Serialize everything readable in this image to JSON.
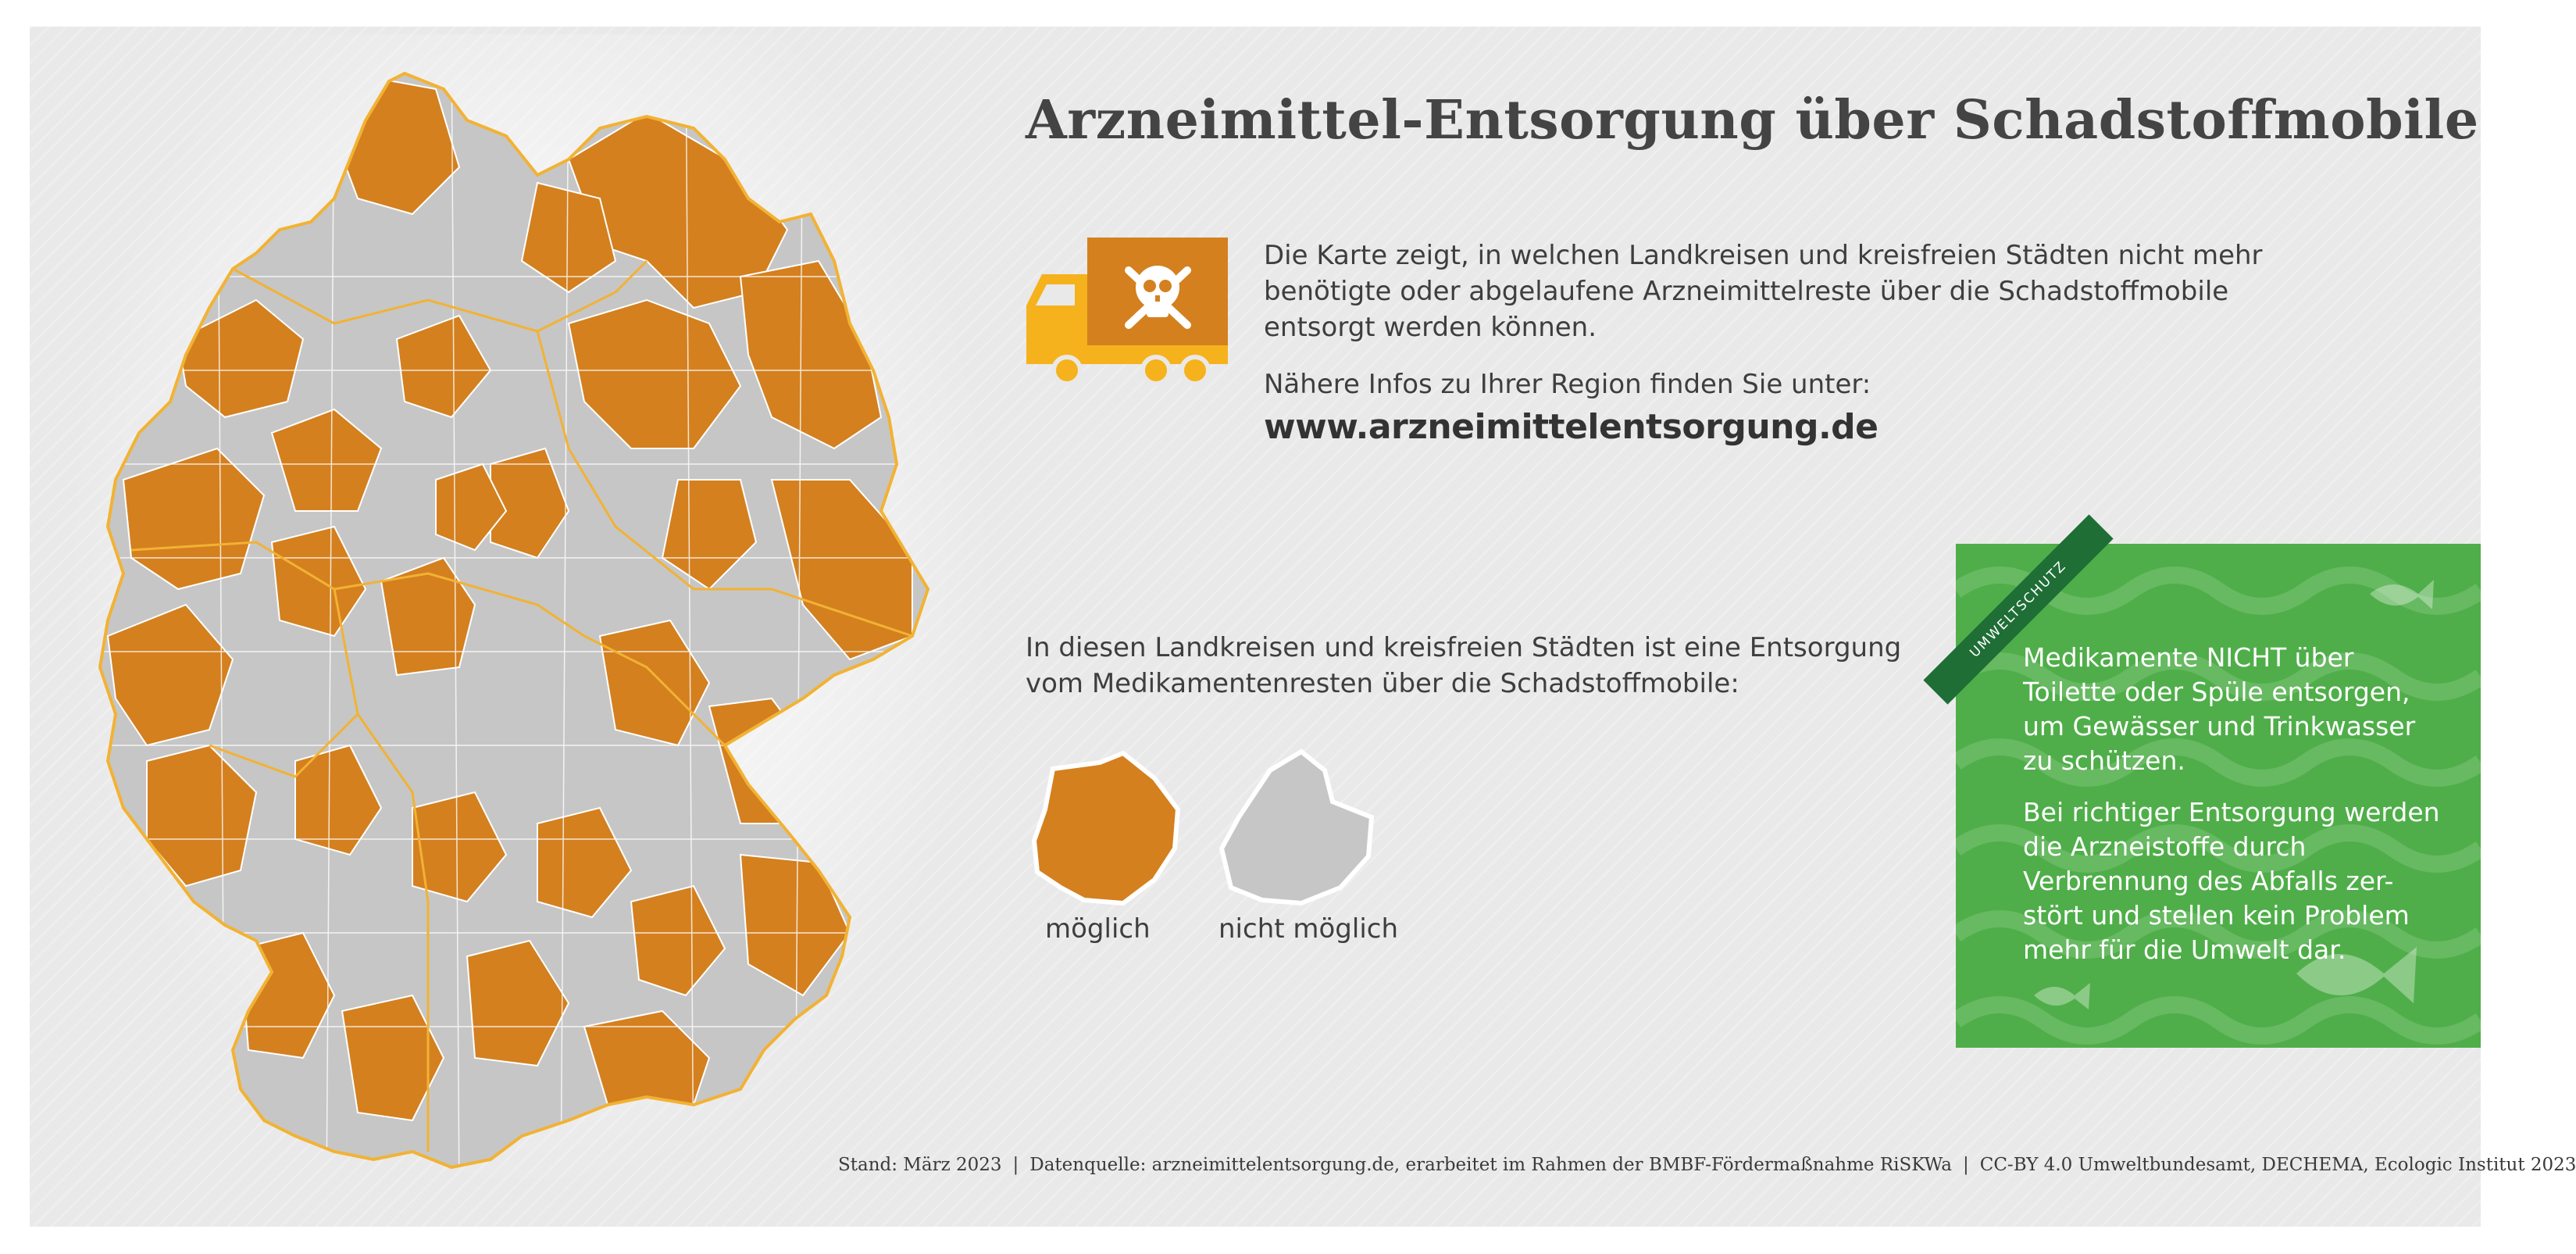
{
  "title": "Arzneimittel-Entsorgung über Schadstoffmobile",
  "intro_text": "Die Karte zeigt, in welchen Landkreisen und kreisfreien Städten nicht mehr benötigte oder abgelaufene Arzneimittelreste über die Schadstoffmobile entsorgt werden können.",
  "more_info_text": "Nähere Infos zu Ihrer Region finden Sie unter:",
  "url": "www.arzneimittelentsorgung.de",
  "legend": {
    "title": "In diesen Landkreisen und kreisfreien Städten ist eine Entsorgung vom Medikamentenresten über die Schadstoffmobile:",
    "items": [
      {
        "label": "möglich",
        "color": "#d4801f"
      },
      {
        "label": "nicht möglich",
        "color": "#c6c6c6"
      }
    ]
  },
  "info_box": {
    "ribbon": "UMWELTSCHUTZ",
    "paragraph1": "Medikamente NICHT über Toilette oder Spüle entsorgen, um Gewässer und Trinkwasser zu schützen.",
    "paragraph2": "Bei richtiger Entsorgung werden die Arzneistoffe durch Verbrennung des Abfalls zer-stört und stellen kein Problem mehr für die Umwelt dar.",
    "color": "#4fae49"
  },
  "footer": {
    "stand": "Stand: März 2023",
    "source": "Datenquelle: arzneimittelentsorgung.de, erarbeitet im Rahmen der BMBF-Fördermaßnahme RiSKWa",
    "license": "CC-BY 4.0 Umweltbundesamt, DECHEMA, Ecologic Institut 2023",
    "separator": "|"
  },
  "colors": {
    "possible": "#d4801f",
    "not_possible": "#c6c6c6",
    "state_border": "#f2b233",
    "truck_body": "#f6b21c",
    "truck_cargo": "#d4801f"
  },
  "icons": [
    "truck-icon",
    "skull-crossbones-icon",
    "fish-icon"
  ]
}
